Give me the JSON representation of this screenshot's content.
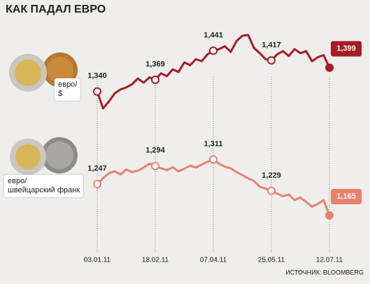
{
  "chart_data": {
    "type": "line",
    "title": "КАК ПАДАЛ ЕВРО",
    "source": "ИСТОЧНИК: BLOOMBERG",
    "categories": [
      "03.01.11",
      null,
      null,
      null,
      null,
      null,
      null,
      null,
      null,
      null,
      "18.02.11",
      null,
      null,
      null,
      null,
      null,
      null,
      null,
      null,
      null,
      "07.04.11",
      null,
      null,
      null,
      null,
      null,
      null,
      null,
      null,
      null,
      "25.05.11",
      null,
      null,
      null,
      null,
      null,
      null,
      null,
      null,
      null,
      "12.07.11"
    ],
    "series": [
      {
        "name": "евро/\n$",
        "color": "#a51c24",
        "values": [
          1.34,
          1.298,
          1.315,
          1.335,
          1.345,
          1.35,
          1.358,
          1.372,
          1.362,
          1.375,
          1.369,
          1.385,
          1.378,
          1.395,
          1.388,
          1.412,
          1.405,
          1.42,
          1.415,
          1.432,
          1.441,
          1.445,
          1.452,
          1.438,
          1.465,
          1.478,
          1.48,
          1.448,
          1.435,
          1.42,
          1.417,
          1.432,
          1.44,
          1.428,
          1.445,
          1.435,
          1.44,
          1.415,
          1.425,
          1.43,
          1.399
        ],
        "value_labels": [
          "1,340",
          null,
          null,
          null,
          null,
          null,
          null,
          null,
          null,
          null,
          "1,369",
          null,
          null,
          null,
          null,
          null,
          null,
          null,
          null,
          null,
          "1,441",
          null,
          null,
          null,
          null,
          null,
          null,
          null,
          null,
          null,
          "1,417",
          null,
          null,
          null,
          null,
          null,
          null,
          null,
          null,
          null,
          "1,399"
        ]
      },
      {
        "name": "евро/\nшвейцарский франк",
        "color": "#e8826e",
        "values": [
          1.247,
          1.262,
          1.275,
          1.28,
          1.272,
          1.285,
          1.278,
          1.282,
          1.29,
          1.3,
          1.294,
          1.288,
          1.283,
          1.291,
          1.28,
          1.287,
          1.295,
          1.29,
          1.298,
          1.305,
          1.311,
          1.3,
          1.292,
          1.288,
          1.278,
          1.27,
          1.262,
          1.255,
          1.24,
          1.235,
          1.229,
          1.222,
          1.215,
          1.22,
          1.205,
          1.212,
          1.2,
          1.188,
          1.195,
          1.205,
          1.165
        ],
        "value_labels": [
          "1,247",
          null,
          null,
          null,
          null,
          null,
          null,
          null,
          null,
          null,
          "1,294",
          null,
          null,
          null,
          null,
          null,
          null,
          null,
          null,
          null,
          "1,311",
          null,
          null,
          null,
          null,
          null,
          null,
          null,
          null,
          null,
          "1,229",
          null,
          null,
          null,
          null,
          null,
          null,
          null,
          null,
          null,
          "1,165"
        ]
      }
    ]
  }
}
